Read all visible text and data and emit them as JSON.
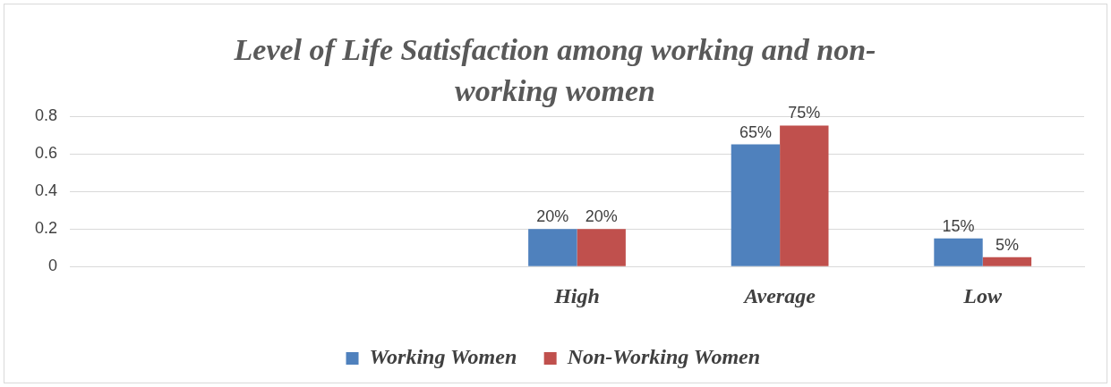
{
  "chart_data": {
    "type": "bar",
    "title": "Level of Life Satisfaction among working and non-working women",
    "categories": [
      null,
      null,
      "High",
      "Average",
      "Low"
    ],
    "series": [
      {
        "name": "Working Women",
        "color": "#4f81bd",
        "values": [
          null,
          null,
          0.2,
          0.65,
          0.15
        ],
        "value_labels": [
          null,
          null,
          "20%",
          "65%",
          "15%"
        ]
      },
      {
        "name": "Non-Working Women",
        "color": "#c0504d",
        "values": [
          null,
          null,
          0.2,
          0.75,
          0.05
        ],
        "value_labels": [
          null,
          null,
          "20%",
          "75%",
          "5%"
        ]
      }
    ],
    "ylim": [
      0,
      0.8
    ],
    "yticks": [
      0,
      0.2,
      0.4,
      0.6,
      0.8
    ],
    "grid": "y",
    "legend": "bottom"
  }
}
